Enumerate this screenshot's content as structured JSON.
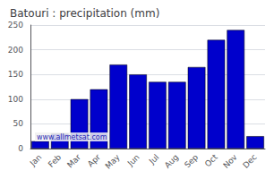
{
  "chart_data": {
    "type": "bar",
    "title": "Batouri : precipitation (mm)",
    "categories": [
      "Jan",
      "Feb",
      "Mar",
      "Apr",
      "May",
      "Jun",
      "Jul",
      "Aug",
      "Sep",
      "Oct",
      "Nov",
      "Dec"
    ],
    "values": [
      15,
      30,
      100,
      120,
      170,
      150,
      135,
      135,
      165,
      220,
      240,
      25
    ],
    "color": "#0000CC",
    "ylim": [
      0,
      250
    ],
    "yticks": [
      0,
      50,
      100,
      150,
      200,
      250
    ],
    "grid": true,
    "annotation": "www.allmetsat.com"
  }
}
